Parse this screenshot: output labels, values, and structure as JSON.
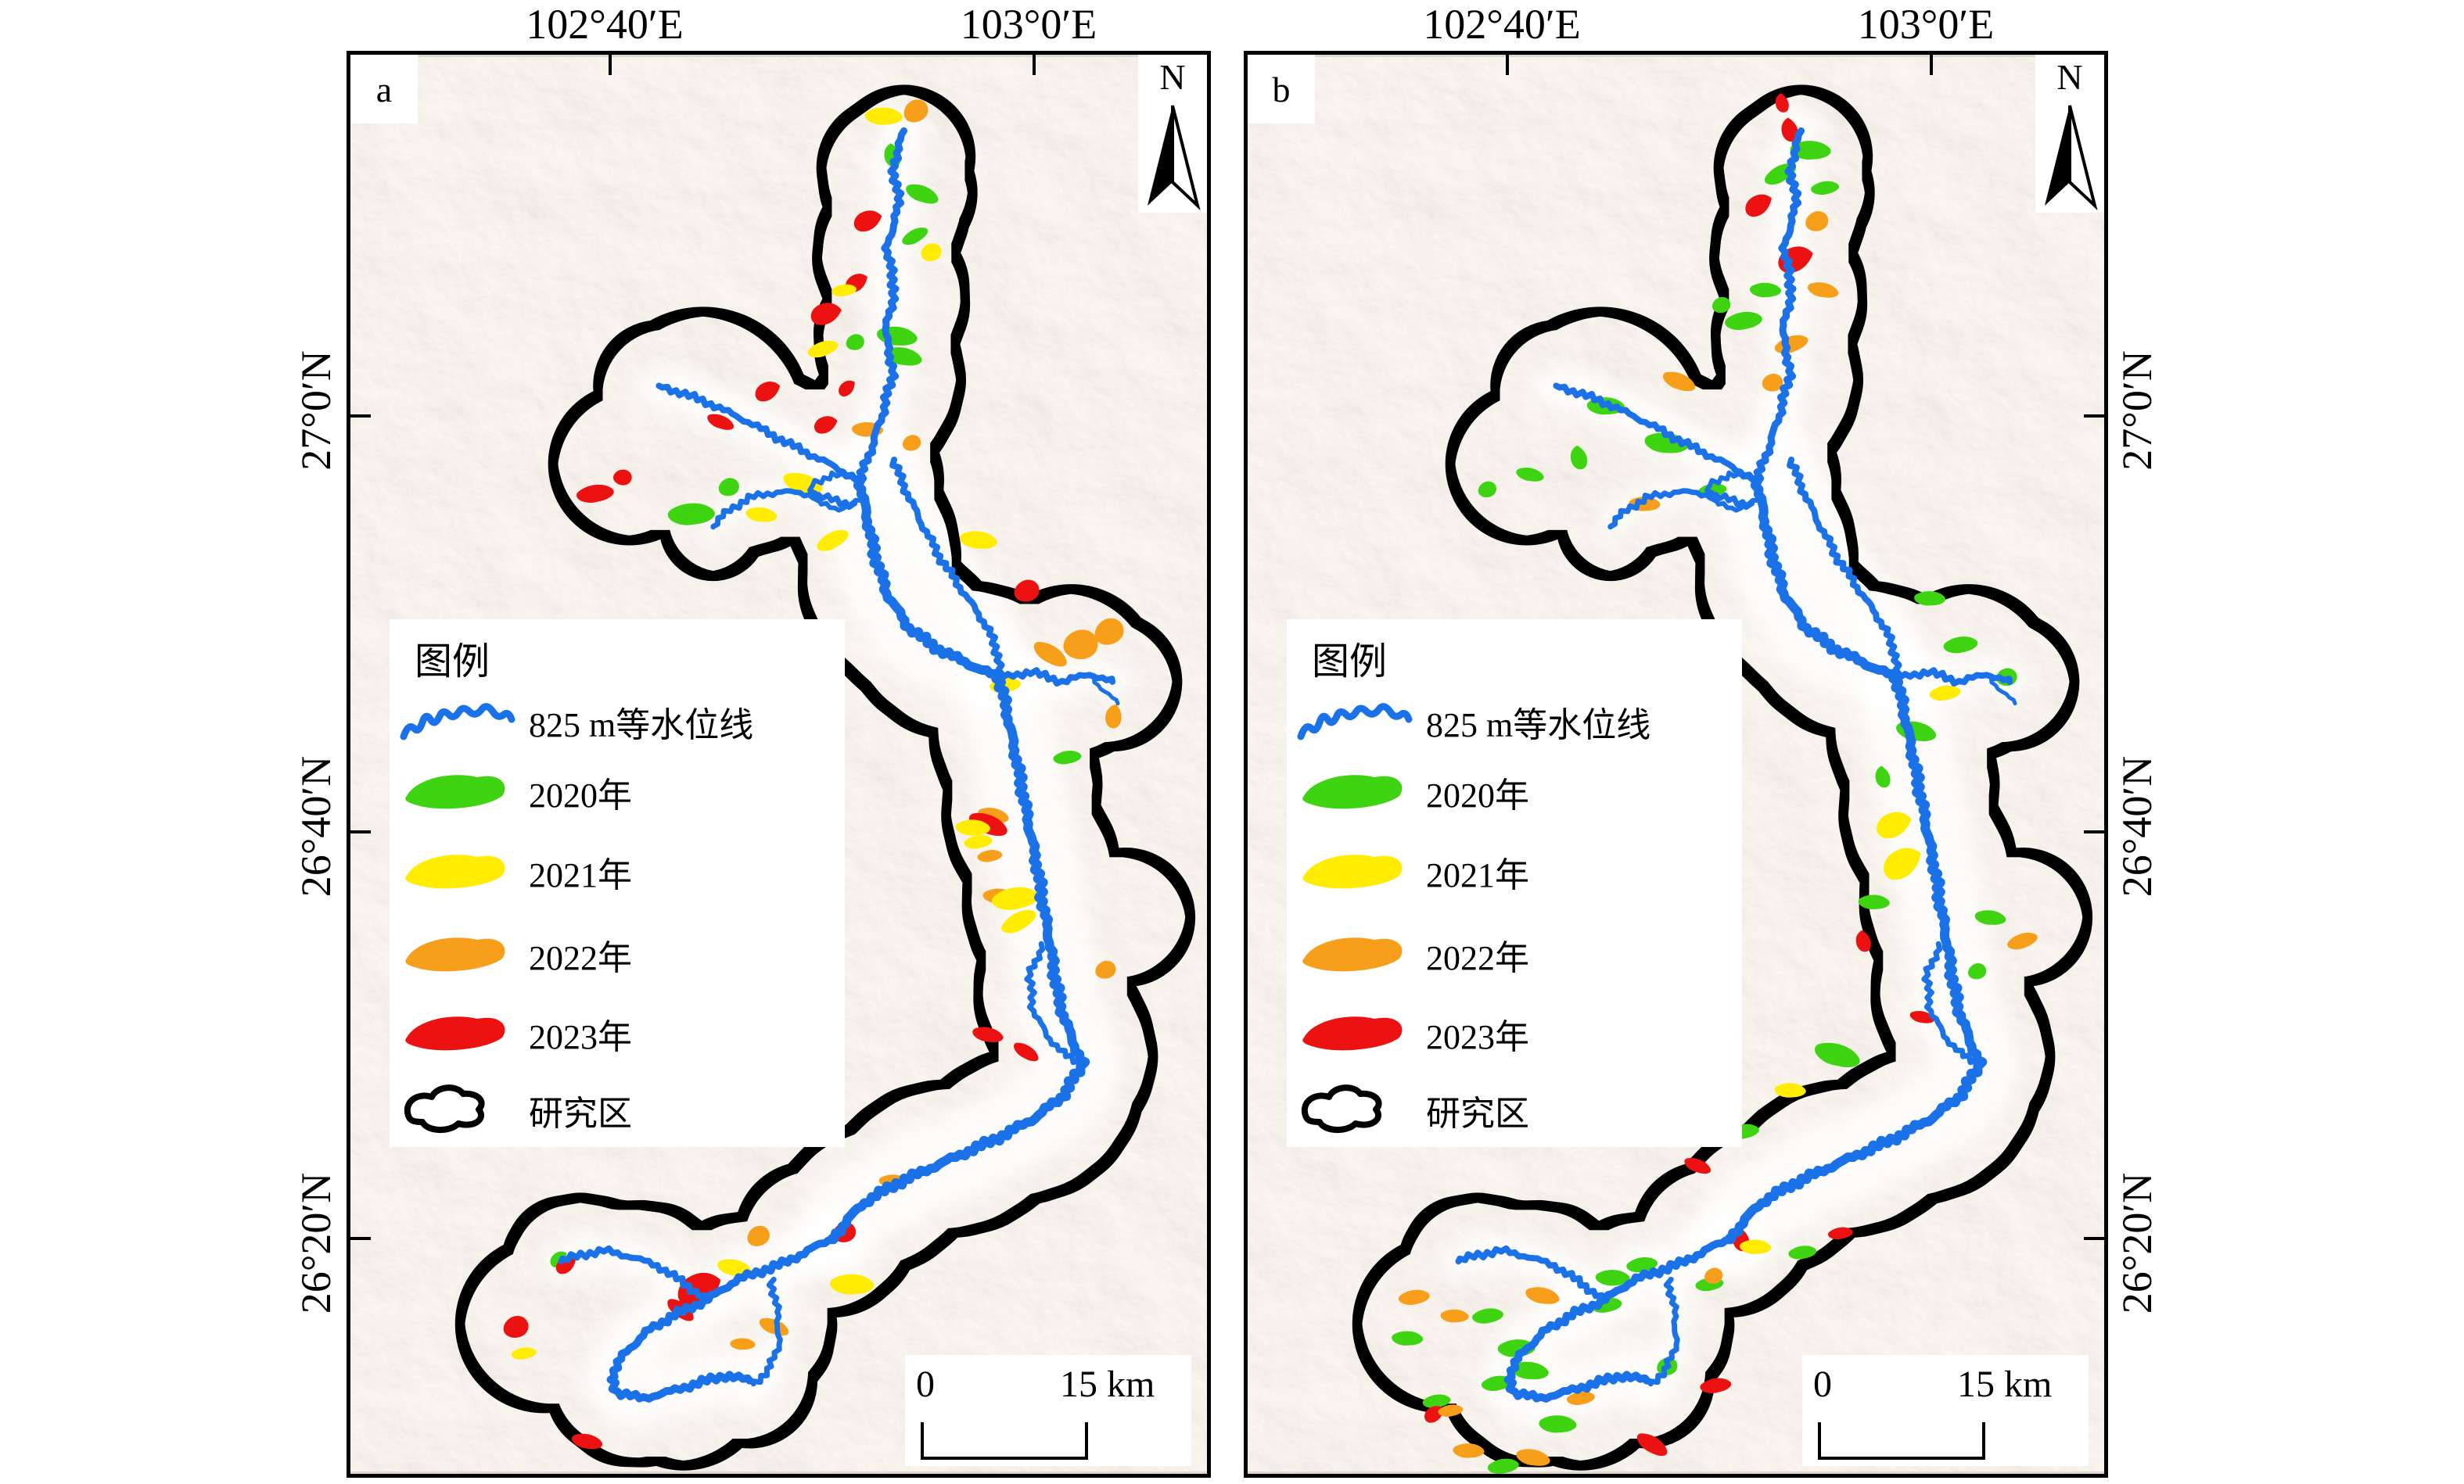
{
  "panels": [
    {
      "label": "a"
    },
    {
      "label": "b"
    }
  ],
  "axis": {
    "lon_labels": [
      "102°40′E",
      "103°0′E"
    ],
    "lat_labels": [
      "27°0′N",
      "26°40′N",
      "26°20′N"
    ]
  },
  "map_furniture": {
    "north_label": "N",
    "scalebar_start": "0",
    "scalebar_end": "15 km"
  },
  "legend": {
    "title": "图例",
    "items": [
      {
        "label": "825 m等水位线",
        "type": "line"
      },
      {
        "label": "2020年",
        "type": "patch"
      },
      {
        "label": "2021年",
        "type": "patch"
      },
      {
        "label": "2022年",
        "type": "patch"
      },
      {
        "label": "2023年",
        "type": "patch"
      },
      {
        "label": "研究区",
        "type": "outline"
      }
    ]
  },
  "colors": {
    "water_level_line": "#1b72e8",
    "year_2020": "#3ed412",
    "year_2021": "#ffec00",
    "year_2022": "#f79e1b",
    "year_2023": "#ed1212",
    "study_area": "#000000",
    "hillshade_base": "#d8d2ca"
  }
}
